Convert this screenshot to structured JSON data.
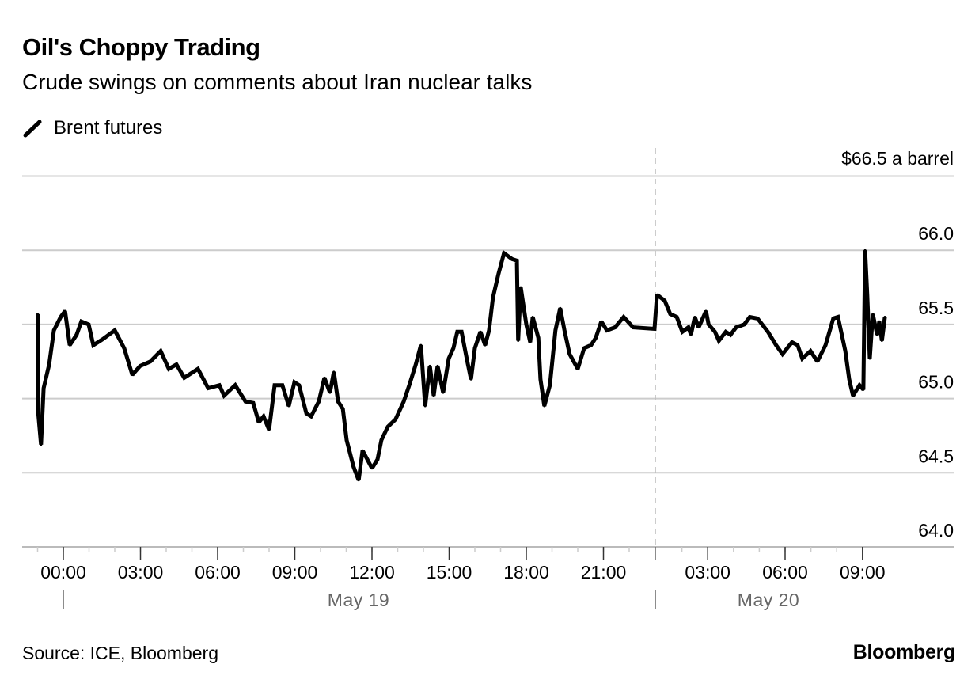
{
  "header": {
    "title": "Oil's Choppy Trading",
    "subtitle": "Crude swings on comments about Iran nuclear talks"
  },
  "legend": {
    "label": "Brent futures",
    "icon": "line-slash-icon"
  },
  "footer": {
    "source": "Source: ICE, Bloomberg",
    "brand": "Bloomberg"
  },
  "chart_data": {
    "type": "line",
    "title": "Oil's Choppy Trading",
    "subtitle": "Crude swings on comments about Iran nuclear talks",
    "ylabel": "",
    "unit_label": "$66.5 a barrel",
    "ylim": [
      64.0,
      66.5
    ],
    "y_ticks": [
      "64.0",
      "64.5",
      "65.0",
      "65.5",
      "66.0"
    ],
    "y_tick_values": [
      64.0,
      64.5,
      65.0,
      65.5,
      66.0
    ],
    "x_ticks": [
      {
        "label": "00:00",
        "t": "May 19 00:00"
      },
      {
        "label": "03:00",
        "t": "May 19 03:00"
      },
      {
        "label": "06:00",
        "t": "May 19 06:00"
      },
      {
        "label": "09:00",
        "t": "May 19 09:00"
      },
      {
        "label": "12:00",
        "t": "May 19 12:00"
      },
      {
        "label": "15:00",
        "t": "May 19 15:00"
      },
      {
        "label": "18:00",
        "t": "May 19 18:00"
      },
      {
        "label": "21:00",
        "t": "May 19 21:00"
      },
      {
        "label": "03:00",
        "t": "May 20 03:00"
      },
      {
        "label": "06:00",
        "t": "May 20 06:00"
      },
      {
        "label": "09:00",
        "t": "May 20 09:00"
      }
    ],
    "date_labels": [
      "May 19",
      "May 20"
    ],
    "grid": true,
    "legend_position": "top-left",
    "line_color": "#000000",
    "grid_color": "#cccccc",
    "series": [
      {
        "name": "Brent futures",
        "points": [
          [
            "May 18 23:00",
            65.57
          ],
          [
            "May 18 23:01",
            64.92
          ],
          [
            "May 18 23:08",
            64.69
          ],
          [
            "May 18 23:14",
            65.07
          ],
          [
            "May 18 23:27",
            65.23
          ],
          [
            "May 18 23:38",
            65.46
          ],
          [
            "May 18 23:54",
            65.55
          ],
          [
            "May 19 00:04",
            65.59
          ],
          [
            "May 19 00:15",
            65.36
          ],
          [
            "May 19 00:31",
            65.43
          ],
          [
            "May 19 00:42",
            65.52
          ],
          [
            "May 19 00:59",
            65.5
          ],
          [
            "May 19 01:10",
            65.36
          ],
          [
            "May 19 01:32",
            65.4
          ],
          [
            "May 19 02:00",
            65.46
          ],
          [
            "May 19 02:22",
            65.34
          ],
          [
            "May 19 02:41",
            65.16
          ],
          [
            "May 19 02:59",
            65.22
          ],
          [
            "May 19 03:23",
            65.25
          ],
          [
            "May 19 03:47",
            65.32
          ],
          [
            "May 19 04:06",
            65.2
          ],
          [
            "May 19 04:24",
            65.23
          ],
          [
            "May 19 04:42",
            65.14
          ],
          [
            "May 19 05:14",
            65.2
          ],
          [
            "May 19 05:38",
            65.07
          ],
          [
            "May 19 06:04",
            65.09
          ],
          [
            "May 19 06:15",
            65.02
          ],
          [
            "May 19 06:41",
            65.09
          ],
          [
            "May 19 07:05",
            64.98
          ],
          [
            "May 19 07:23",
            64.97
          ],
          [
            "May 19 07:36",
            64.84
          ],
          [
            "May 19 07:47",
            64.88
          ],
          [
            "May 19 08:00",
            64.79
          ],
          [
            "May 19 08:13",
            65.09
          ],
          [
            "May 19 08:31",
            65.09
          ],
          [
            "May 19 08:46",
            64.95
          ],
          [
            "May 19 08:59",
            65.11
          ],
          [
            "May 19 09:10",
            65.09
          ],
          [
            "May 19 09:27",
            64.9
          ],
          [
            "May 19 09:38",
            64.88
          ],
          [
            "May 19 09:56",
            64.98
          ],
          [
            "May 19 10:09",
            65.14
          ],
          [
            "May 19 10:22",
            65.04
          ],
          [
            "May 19 10:31",
            65.18
          ],
          [
            "May 19 10:41",
            64.98
          ],
          [
            "May 19 10:52",
            64.93
          ],
          [
            "May 19 11:01",
            64.72
          ],
          [
            "May 19 11:17",
            64.54
          ],
          [
            "May 19 11:29",
            64.45
          ],
          [
            "May 19 11:38",
            64.65
          ],
          [
            "May 19 11:51",
            64.58
          ],
          [
            "May 19 12:00",
            64.53
          ],
          [
            "May 19 12:13",
            64.59
          ],
          [
            "May 19 12:22",
            64.72
          ],
          [
            "May 19 12:37",
            64.81
          ],
          [
            "May 19 12:55",
            64.86
          ],
          [
            "May 19 13:14",
            64.98
          ],
          [
            "May 19 13:27",
            65.09
          ],
          [
            "May 19 13:42",
            65.23
          ],
          [
            "May 19 13:54",
            65.36
          ],
          [
            "May 19 14:04",
            64.95
          ],
          [
            "May 19 14:15",
            65.22
          ],
          [
            "May 19 14:24",
            65.02
          ],
          [
            "May 19 14:33",
            65.22
          ],
          [
            "May 19 14:46",
            65.04
          ],
          [
            "May 19 14:59",
            65.27
          ],
          [
            "May 19 15:10",
            65.34
          ],
          [
            "May 19 15:19",
            65.45
          ],
          [
            "May 19 15:29",
            65.45
          ],
          [
            "May 19 15:41",
            65.27
          ],
          [
            "May 19 15:51",
            65.13
          ],
          [
            "May 19 16:00",
            65.34
          ],
          [
            "May 19 16:13",
            65.45
          ],
          [
            "May 19 16:24",
            65.36
          ],
          [
            "May 19 16:33",
            65.46
          ],
          [
            "May 19 16:42",
            65.68
          ],
          [
            "May 19 16:55",
            65.84
          ],
          [
            "May 19 17:08",
            65.98
          ],
          [
            "May 19 17:27",
            65.94
          ],
          [
            "May 19 17:38",
            65.93
          ],
          [
            "May 19 17:41",
            65.39
          ],
          [
            "May 19 17:47",
            65.75
          ],
          [
            "May 19 18:00",
            65.5
          ],
          [
            "May 19 18:09",
            65.38
          ],
          [
            "May 19 18:15",
            65.55
          ],
          [
            "May 19 18:28",
            65.41
          ],
          [
            "May 19 18:33",
            65.13
          ],
          [
            "May 19 18:42",
            64.95
          ],
          [
            "May 19 18:55",
            65.09
          ],
          [
            "May 19 19:08",
            65.46
          ],
          [
            "May 19 19:19",
            65.61
          ],
          [
            "May 19 19:29",
            65.46
          ],
          [
            "May 19 19:41",
            65.3
          ],
          [
            "May 19 20:00",
            65.2
          ],
          [
            "May 19 20:15",
            65.34
          ],
          [
            "May 19 20:31",
            65.36
          ],
          [
            "May 19 20:42",
            65.41
          ],
          [
            "May 19 20:55",
            65.52
          ],
          [
            "May 19 21:08",
            65.46
          ],
          [
            "May 19 21:27",
            65.48
          ],
          [
            "May 19 21:47",
            65.55
          ],
          [
            "May 19 22:09",
            65.48
          ],
          [
            "May 19 22:59",
            65.47
          ],
          [
            "May 20 01:02",
            65.7
          ],
          [
            "May 20 01:20",
            65.66
          ],
          [
            "May 20 01:33",
            65.57
          ],
          [
            "May 20 01:48",
            65.55
          ],
          [
            "May 20 02:01",
            65.45
          ],
          [
            "May 20 02:15",
            65.48
          ],
          [
            "May 20 02:21",
            65.43
          ],
          [
            "May 20 02:30",
            65.55
          ],
          [
            "May 20 02:39",
            65.48
          ],
          [
            "May 20 02:56",
            65.59
          ],
          [
            "May 20 03:02",
            65.5
          ],
          [
            "May 20 03:17",
            65.45
          ],
          [
            "May 20 03:26",
            65.39
          ],
          [
            "May 20 03:42",
            65.45
          ],
          [
            "May 20 03:53",
            65.43
          ],
          [
            "May 20 04:06",
            65.48
          ],
          [
            "May 20 04:25",
            65.5
          ],
          [
            "May 20 04:38",
            65.55
          ],
          [
            "May 20 04:56",
            65.54
          ],
          [
            "May 20 05:20",
            65.45
          ],
          [
            "May 20 05:39",
            65.36
          ],
          [
            "May 20 05:54",
            65.3
          ],
          [
            "May 20 06:16",
            65.38
          ],
          [
            "May 20 06:29",
            65.36
          ],
          [
            "May 20 06:40",
            65.27
          ],
          [
            "May 20 06:59",
            65.32
          ],
          [
            "May 20 07:15",
            65.25
          ],
          [
            "May 20 07:34",
            65.36
          ],
          [
            "May 20 07:52",
            65.54
          ],
          [
            "May 20 08:03",
            65.55
          ],
          [
            "May 20 08:20",
            65.32
          ],
          [
            "May 20 08:29",
            65.13
          ],
          [
            "May 20 08:38",
            65.02
          ],
          [
            "May 20 08:53",
            65.09
          ],
          [
            "May 20 09:02",
            65.06
          ],
          [
            "May 20 09:06",
            66.0
          ],
          [
            "May 20 09:11",
            65.7
          ],
          [
            "May 20 09:17",
            65.27
          ],
          [
            "May 20 09:24",
            65.57
          ],
          [
            "May 20 09:34",
            65.43
          ],
          [
            "May 20 09:39",
            65.52
          ],
          [
            "May 20 09:45",
            65.39
          ],
          [
            "May 20 09:52",
            65.55
          ]
        ]
      }
    ]
  }
}
